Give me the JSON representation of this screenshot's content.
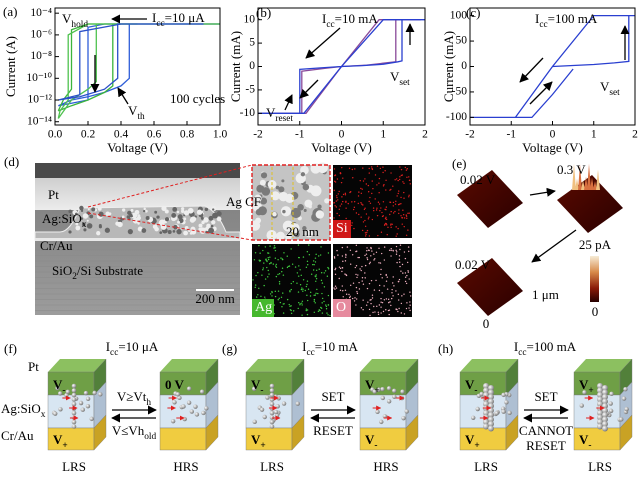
{
  "chart_data": [
    {
      "type": "line",
      "panel_label": "(a)",
      "x_label": "Voltage (V)",
      "y_label": "Current (A)",
      "log_y": true,
      "xlim": [
        0,
        1.0
      ],
      "ylim": [
        5e-15,
        0.0003
      ],
      "xticks": [
        {
          "value": 0,
          "label": "0.0"
        },
        0.2,
        0.4,
        0.6,
        0.8,
        {
          "value": 1.0,
          "label": "1.0"
        }
      ],
      "yticks": [
        {
          "value": 0.0001,
          "label": "10⁻⁴"
        },
        {
          "value": 1e-06,
          "label": "10⁻⁶"
        },
        {
          "value": 1e-08,
          "label": "10⁻⁸"
        },
        {
          "value": 1e-10,
          "label": "10⁻¹⁰"
        },
        {
          "value": 1e-12,
          "label": "10⁻¹²"
        },
        {
          "value": 1e-14,
          "label": "10⁻¹⁴"
        }
      ],
      "annotations": [
        "Vhold",
        "Icc=10 μA",
        "Vth",
        "100 cycles"
      ],
      "series": [
        {
          "color": "#2f5fd8",
          "x": [
            0.02,
            0.1,
            0.2,
            0.3,
            0.4,
            0.45,
            0.45,
            0.7,
            1.0,
            0.7,
            0.3,
            0.2,
            0.2,
            0.1,
            0.02
          ],
          "values": [
            3e-13,
            1e-12,
            2e-12,
            5e-12,
            2e-11,
            1e-10,
            1e-05,
            1e-05,
            1e-05,
            1e-05,
            1e-05,
            5e-06,
            1e-12,
            5e-13,
            3e-13
          ]
        },
        {
          "color": "#3cb43c",
          "x": [
            0.02,
            0.1,
            0.2,
            0.3,
            0.35,
            0.35,
            0.6,
            1.0,
            0.6,
            0.2,
            0.1,
            0.1,
            0.05,
            0.02
          ],
          "values": [
            1e-13,
            3e-13,
            1e-12,
            5e-12,
            2e-11,
            1e-05,
            1e-05,
            1e-05,
            1e-05,
            1e-05,
            3e-06,
            1e-11,
            1e-12,
            1e-13
          ]
        },
        {
          "color": "#4fc24f",
          "x": [
            0.02,
            0.1,
            0.2,
            0.25,
            0.25,
            0.5,
            0.2,
            0.08,
            0.08,
            0.03,
            0.02
          ],
          "values": [
            2e-14,
            1e-12,
            1e-11,
            5e-11,
            1e-05,
            1e-05,
            1e-05,
            1e-06,
            1e-12,
            1e-13,
            2e-14
          ]
        },
        {
          "color": "#2a4fc8",
          "x": [
            0.02,
            0.15,
            0.3,
            0.38,
            0.38,
            0.9,
            0.4,
            0.15,
            0.15,
            0.02
          ],
          "values": [
            1e-12,
            2e-12,
            1e-11,
            1e-10,
            1e-05,
            1e-05,
            1e-05,
            2e-06,
            3e-12,
            1e-12
          ]
        }
      ]
    },
    {
      "type": "line",
      "panel_label": "(b)",
      "x_label": "Voltage (V)",
      "y_label": "Current (mA)",
      "log_y": false,
      "xlim": [
        -2,
        2
      ],
      "ylim": [
        -12.5,
        12.5
      ],
      "xticks": [
        -2,
        -1,
        0,
        1,
        2
      ],
      "yticks": [
        10,
        5,
        0,
        -5,
        -10
      ],
      "annotations": [
        "Icc=10 mA",
        "Vset",
        "Vreset"
      ],
      "series": [
        {
          "color": "#8a4a9a",
          "x": [
            0,
            0.6,
            1.0,
            1.3,
            1.3,
            1.9,
            0.9,
            0,
            -0.85,
            -1.9,
            -0.95,
            -0.95,
            -0.4,
            0
          ],
          "values": [
            0,
            0.3,
            0.7,
            1.0,
            10,
            10,
            10,
            0,
            -10,
            -10,
            -10,
            -1,
            -0.4,
            0
          ]
        },
        {
          "color": "#2a3fd0",
          "x": [
            0,
            0.5,
            1.0,
            1.35,
            1.45,
            1.45,
            2,
            1.0,
            0,
            -0.9,
            -2,
            -1.0,
            -1.0,
            -0.5,
            0
          ],
          "values": [
            0,
            0.2,
            0.5,
            1.0,
            1.2,
            10,
            10,
            10,
            0,
            -10,
            -10,
            -10,
            -0.6,
            -0.3,
            0
          ]
        }
      ]
    },
    {
      "type": "line",
      "panel_label": "(c)",
      "x_label": "Voltage (V)",
      "y_label": "Current (mA)",
      "log_y": false,
      "xlim": [
        -2,
        2
      ],
      "ylim": [
        -115,
        115
      ],
      "xticks": [
        -2,
        -1,
        0,
        1,
        2
      ],
      "yticks": [
        100,
        50,
        0,
        -50,
        -100
      ],
      "annotations": [
        "Icc=100 mA",
        "Vset"
      ],
      "series": [
        {
          "color": "#2a3fd0",
          "x": [
            0,
            0.5,
            1.0,
            1.5,
            1.85,
            1.85,
            2,
            1.0,
            0,
            -0.9,
            -2,
            -0.5,
            0,
            0.5
          ],
          "values": [
            0,
            2,
            4,
            7,
            10,
            100,
            100,
            100,
            0,
            -100,
            -100,
            -100,
            -55,
            -5
          ]
        }
      ]
    }
  ],
  "panels": {
    "d": {
      "label": "(d)",
      "layers": [
        "Pt",
        "Ag:SiOx",
        "Cr/Au",
        "SiO2/Si Substrate"
      ],
      "scale_bar": "200 nm",
      "zoom_label": "Ag CF",
      "zoom_scale": "20 nm",
      "maps": [
        "Si",
        "Ag",
        "O"
      ]
    },
    "e": {
      "label": "(e)",
      "voltages": [
        "0.02 V",
        "0.3 V",
        "0.02 V"
      ],
      "colorbar_max": "25 pA",
      "colorbar_min": "0",
      "scale": "1 μm",
      "origin": "0"
    },
    "f": {
      "label": "(f)",
      "compliance": "Icc=10 μA",
      "layers": [
        "Pt",
        "Ag:SiOx",
        "Cr/Au"
      ],
      "left_top": "V-",
      "left_bottom": "V+",
      "right_top": "0 V",
      "arrow_top": "V≥Vth",
      "arrow_bottom": "V≤Vhold",
      "left_state": "LRS",
      "right_state": "HRS"
    },
    "g": {
      "label": "(g)",
      "compliance": "Icc=10 mA",
      "left_top": "V-",
      "left_bottom": "V+",
      "right_top": "V+",
      "right_bottom": "V-",
      "arrow_top": "SET",
      "arrow_bottom": "RESET",
      "left_state": "LRS",
      "right_state": "HRS"
    },
    "h": {
      "label": "(h)",
      "compliance": "Icc=100 mA",
      "left_top": "V-",
      "left_bottom": "V+",
      "right_top": "V+",
      "right_bottom": "V-",
      "arrow_top": "SET",
      "arrow_bottom": [
        "CANNOT",
        "RESET"
      ],
      "left_state": "LRS",
      "right_state": "LRS"
    }
  }
}
